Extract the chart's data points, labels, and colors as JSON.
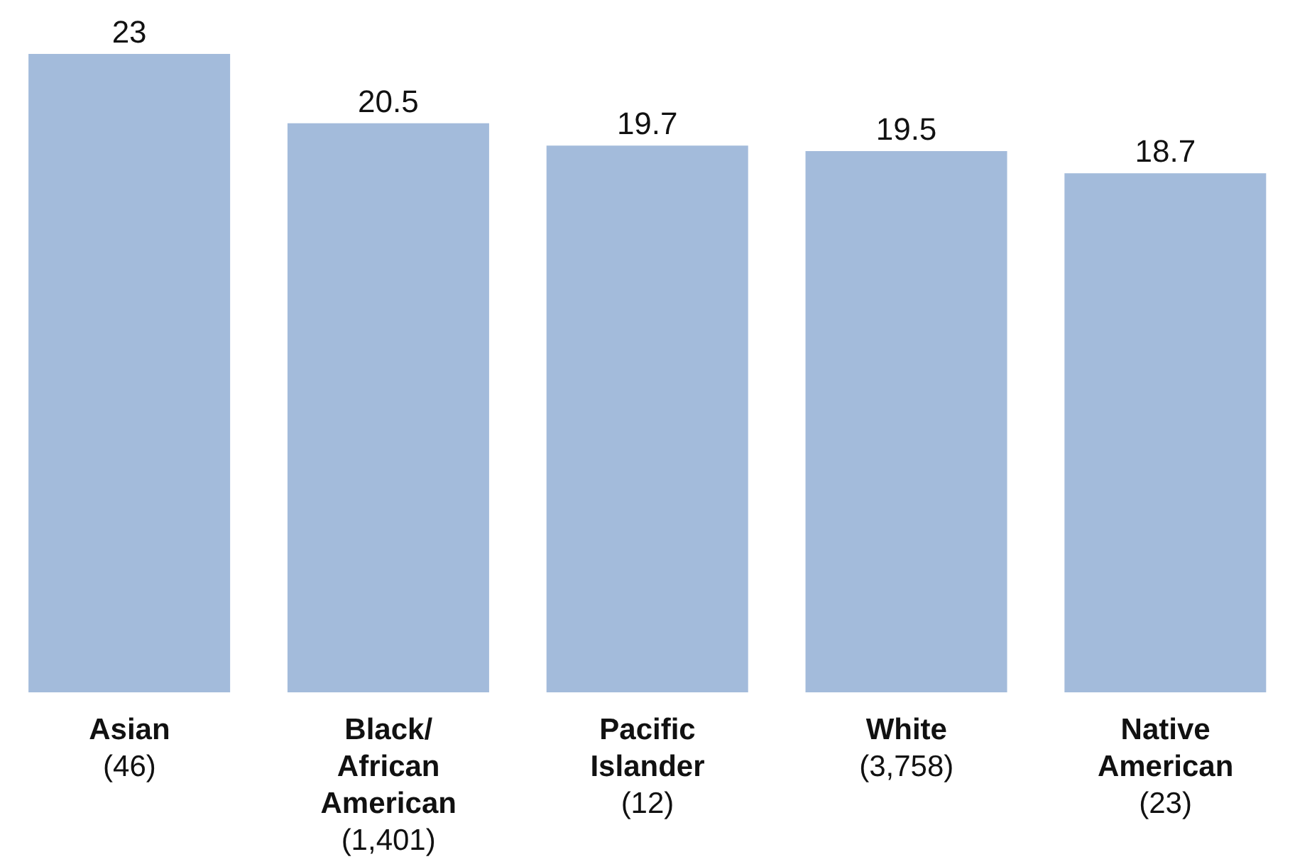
{
  "chart_data": {
    "type": "bar",
    "categories": [
      "Asian\n(46)",
      "Black/\nAfrican\nAmerican\n(1,401)",
      "Pacific\nIslander\n(12)",
      "White\n(3,758)",
      "Native\nAmerican\n(23)"
    ],
    "values": [
      23,
      20.5,
      19.7,
      19.5,
      18.7
    ],
    "color": "#a3bbdb",
    "ylim": [
      0,
      23
    ],
    "data_labels": true
  }
}
